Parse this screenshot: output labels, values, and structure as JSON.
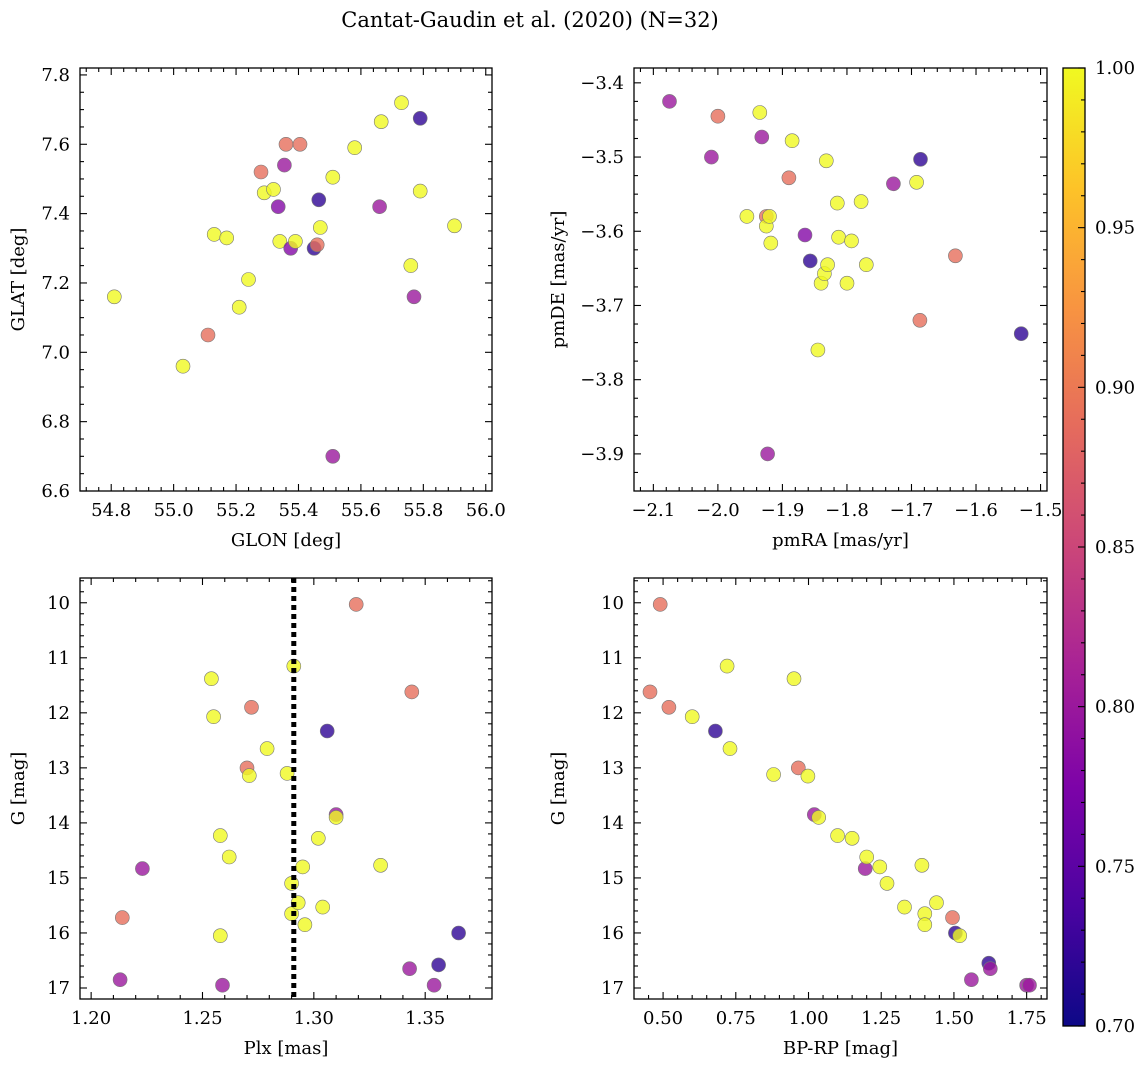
{
  "chart_data": {
    "title": "Cantat-Gaudin et al. (2020) (N=32)",
    "colorbar": {
      "range": [
        0.7,
        1.0
      ],
      "ticks": [
        "0.70",
        "0.75",
        "0.80",
        "0.85",
        "0.90",
        "0.95",
        "1.00"
      ],
      "colormap": "plasma"
    },
    "panels": [
      {
        "type": "scatter",
        "xlabel": "GLON [deg]",
        "ylabel": "GLAT [deg]",
        "xlim": [
          54.7,
          56.02
        ],
        "ylim": [
          6.6,
          7.82
        ],
        "y_inverted": false,
        "xticks": [
          "54.8",
          "55.0",
          "55.2",
          "55.4",
          "55.6",
          "55.8",
          "56.0"
        ],
        "yticks": [
          "6.6",
          "6.8",
          "7.0",
          "7.2",
          "7.4",
          "7.6",
          "7.8"
        ],
        "points": [
          [
            54.81,
            7.16,
            1.0
          ],
          [
            55.03,
            6.96,
            1.0
          ],
          [
            55.11,
            7.05,
            0.89
          ],
          [
            55.13,
            7.34,
            1.0
          ],
          [
            55.17,
            7.33,
            1.0
          ],
          [
            55.21,
            7.13,
            1.0
          ],
          [
            55.24,
            7.21,
            1.0
          ],
          [
            55.28,
            7.52,
            0.89
          ],
          [
            55.29,
            7.46,
            1.0
          ],
          [
            55.32,
            7.47,
            1.0
          ],
          [
            55.335,
            7.42,
            0.78
          ],
          [
            55.34,
            7.32,
            1.0
          ],
          [
            55.355,
            7.54,
            0.8
          ],
          [
            55.36,
            7.6,
            0.89
          ],
          [
            55.375,
            7.3,
            0.78
          ],
          [
            55.39,
            7.32,
            1.0
          ],
          [
            55.405,
            7.6,
            0.89
          ],
          [
            55.45,
            7.3,
            0.72
          ],
          [
            55.46,
            7.31,
            0.89
          ],
          [
            55.465,
            7.44,
            0.72
          ],
          [
            55.47,
            7.36,
            1.0
          ],
          [
            55.51,
            7.505,
            1.0
          ],
          [
            55.51,
            6.7,
            0.8
          ],
          [
            55.58,
            7.59,
            1.0
          ],
          [
            55.66,
            7.42,
            0.8
          ],
          [
            55.665,
            7.665,
            1.0
          ],
          [
            55.73,
            7.72,
            1.0
          ],
          [
            55.76,
            7.25,
            1.0
          ],
          [
            55.77,
            7.16,
            0.8
          ],
          [
            55.79,
            7.675,
            0.72
          ],
          [
            55.79,
            7.465,
            1.0
          ],
          [
            55.9,
            7.365,
            1.0
          ]
        ]
      },
      {
        "type": "scatter",
        "xlabel": "pmRA [mas/yr]",
        "ylabel": "pmDE [mas/yr]",
        "xlim": [
          -2.13,
          -1.49
        ],
        "ylim": [
          -3.95,
          -3.38
        ],
        "y_inverted": false,
        "xticks": [
          "−2.1",
          "−2.0",
          "−1.9",
          "−1.8",
          "−1.7",
          "−1.6",
          "−1.5"
        ],
        "yticks": [
          "−3.9",
          "−3.8",
          "−3.7",
          "−3.6",
          "−3.5",
          "−3.4"
        ],
        "points": [
          [
            -2.075,
            -3.425,
            0.8
          ],
          [
            -2.01,
            -3.5,
            0.8
          ],
          [
            -2.0,
            -3.445,
            0.89
          ],
          [
            -1.955,
            -3.58,
            1.0
          ],
          [
            -1.935,
            -3.44,
            1.0
          ],
          [
            -1.932,
            -3.473,
            0.8
          ],
          [
            -1.925,
            -3.58,
            0.89
          ],
          [
            -1.925,
            -3.593,
            1.0
          ],
          [
            -1.923,
            -3.9,
            0.8
          ],
          [
            -1.92,
            -3.58,
            1.0
          ],
          [
            -1.918,
            -3.616,
            1.0
          ],
          [
            -1.89,
            -3.528,
            0.89
          ],
          [
            -1.885,
            -3.478,
            1.0
          ],
          [
            -1.865,
            -3.605,
            0.78
          ],
          [
            -1.857,
            -3.64,
            0.72
          ],
          [
            -1.845,
            -3.76,
            1.0
          ],
          [
            -1.84,
            -3.67,
            1.0
          ],
          [
            -1.835,
            -3.657,
            1.0
          ],
          [
            -1.832,
            -3.505,
            1.0
          ],
          [
            -1.83,
            -3.645,
            1.0
          ],
          [
            -1.815,
            -3.562,
            1.0
          ],
          [
            -1.813,
            -3.608,
            1.0
          ],
          [
            -1.8,
            -3.67,
            1.0
          ],
          [
            -1.793,
            -3.613,
            1.0
          ],
          [
            -1.778,
            -3.56,
            1.0
          ],
          [
            -1.77,
            -3.645,
            1.0
          ],
          [
            -1.728,
            -3.536,
            0.8
          ],
          [
            -1.692,
            -3.534,
            1.0
          ],
          [
            -1.687,
            -3.72,
            0.89
          ],
          [
            -1.686,
            -3.503,
            0.72
          ],
          [
            -1.632,
            -3.633,
            0.89
          ],
          [
            -1.53,
            -3.738,
            0.72
          ]
        ]
      },
      {
        "type": "scatter",
        "xlabel": "Plx [mas]",
        "ylabel": "G [mag]",
        "xlim": [
          1.195,
          1.38
        ],
        "ylim": [
          9.55,
          17.2
        ],
        "y_inverted": true,
        "xticks": [
          "1.20",
          "1.25",
          "1.30",
          "1.35"
        ],
        "yticks": [
          "10",
          "11",
          "12",
          "13",
          "14",
          "15",
          "16",
          "17"
        ],
        "vline": 1.291,
        "points": [
          [
            1.213,
            16.85,
            0.8
          ],
          [
            1.214,
            15.72,
            0.89
          ],
          [
            1.223,
            14.83,
            0.8
          ],
          [
            1.254,
            11.38,
            1.0
          ],
          [
            1.255,
            12.07,
            1.0
          ],
          [
            1.258,
            14.23,
            1.0
          ],
          [
            1.258,
            16.05,
            1.0
          ],
          [
            1.259,
            16.95,
            0.8
          ],
          [
            1.262,
            14.62,
            1.0
          ],
          [
            1.27,
            13.0,
            0.89
          ],
          [
            1.271,
            13.14,
            1.0
          ],
          [
            1.272,
            11.9,
            0.89
          ],
          [
            1.279,
            12.65,
            1.0
          ],
          [
            1.288,
            13.1,
            1.0
          ],
          [
            1.29,
            15.1,
            1.0
          ],
          [
            1.29,
            15.65,
            1.0
          ],
          [
            1.291,
            11.15,
            1.0
          ],
          [
            1.293,
            15.45,
            1.0
          ],
          [
            1.295,
            14.8,
            1.0
          ],
          [
            1.296,
            15.85,
            1.0
          ],
          [
            1.302,
            14.28,
            1.0
          ],
          [
            1.304,
            15.53,
            1.0
          ],
          [
            1.306,
            12.33,
            0.72
          ],
          [
            1.31,
            13.85,
            0.8
          ],
          [
            1.31,
            13.9,
            1.0
          ],
          [
            1.319,
            10.03,
            0.89
          ],
          [
            1.33,
            14.77,
            1.0
          ],
          [
            1.343,
            16.65,
            0.8
          ],
          [
            1.344,
            11.62,
            0.89
          ],
          [
            1.354,
            16.95,
            0.8
          ],
          [
            1.356,
            16.58,
            0.72
          ],
          [
            1.365,
            16.0,
            0.72
          ]
        ]
      },
      {
        "type": "scatter",
        "xlabel": "BP-RP [mag]",
        "ylabel": "G [mag]",
        "xlim": [
          0.4,
          1.82
        ],
        "ylim": [
          9.55,
          17.2
        ],
        "y_inverted": true,
        "xticks": [
          "0.50",
          "0.75",
          "1.00",
          "1.25",
          "1.50",
          "1.75"
        ],
        "yticks": [
          "10",
          "11",
          "12",
          "13",
          "14",
          "15",
          "16",
          "17"
        ],
        "points": [
          [
            0.49,
            10.03,
            0.89
          ],
          [
            0.455,
            11.62,
            0.89
          ],
          [
            0.52,
            11.9,
            0.89
          ],
          [
            0.6,
            12.07,
            1.0
          ],
          [
            0.68,
            12.33,
            0.72
          ],
          [
            0.72,
            11.15,
            1.0
          ],
          [
            0.73,
            12.65,
            1.0
          ],
          [
            0.88,
            13.12,
            1.0
          ],
          [
            0.95,
            11.38,
            1.0
          ],
          [
            0.965,
            13.0,
            0.89
          ],
          [
            0.998,
            13.15,
            1.0
          ],
          [
            1.02,
            13.85,
            0.8
          ],
          [
            1.035,
            13.9,
            1.0
          ],
          [
            1.1,
            14.23,
            1.0
          ],
          [
            1.15,
            14.28,
            1.0
          ],
          [
            1.195,
            14.83,
            0.8
          ],
          [
            1.2,
            14.62,
            1.0
          ],
          [
            1.245,
            14.8,
            1.0
          ],
          [
            1.27,
            15.1,
            1.0
          ],
          [
            1.33,
            15.53,
            1.0
          ],
          [
            1.39,
            14.77,
            1.0
          ],
          [
            1.4,
            15.65,
            1.0
          ],
          [
            1.4,
            15.85,
            1.0
          ],
          [
            1.44,
            15.45,
            1.0
          ],
          [
            1.495,
            15.72,
            0.89
          ],
          [
            1.505,
            16.0,
            0.72
          ],
          [
            1.52,
            16.05,
            1.0
          ],
          [
            1.56,
            16.85,
            0.8
          ],
          [
            1.62,
            16.55,
            0.72
          ],
          [
            1.625,
            16.65,
            0.8
          ],
          [
            1.75,
            16.95,
            0.8
          ],
          [
            1.76,
            16.95,
            0.8
          ]
        ]
      }
    ]
  }
}
